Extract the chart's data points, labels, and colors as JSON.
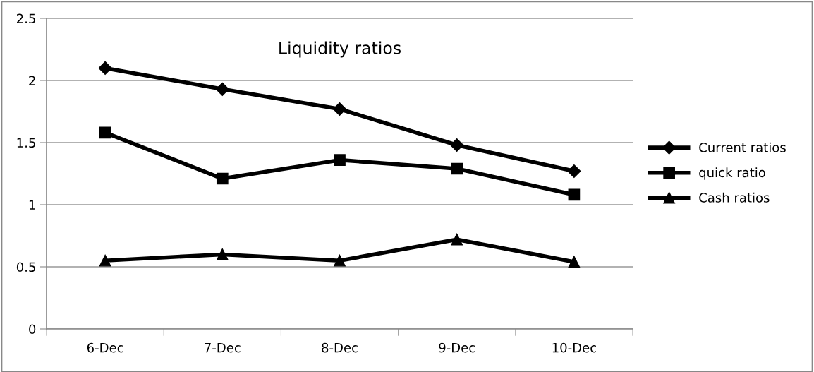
{
  "chart_data": {
    "type": "line",
    "title": "Liquidity ratios",
    "categories": [
      "6-Dec",
      "7-Dec",
      "8-Dec",
      "9-Dec",
      "10-Dec"
    ],
    "series": [
      {
        "name": "Current ratios",
        "color": "#000000",
        "marker": "diamond",
        "values": [
          2.1,
          1.93,
          1.77,
          1.48,
          1.27
        ]
      },
      {
        "name": "quick ratio",
        "color": "#000000",
        "marker": "square",
        "values": [
          1.58,
          1.21,
          1.36,
          1.29,
          1.08
        ]
      },
      {
        "name": "Cash ratios",
        "color": "#000000",
        "marker": "triangle",
        "values": [
          0.55,
          0.6,
          0.55,
          0.72,
          0.54
        ]
      }
    ],
    "ylim": [
      0,
      2.5
    ],
    "yticks": [
      0,
      0.5,
      1,
      1.5,
      2,
      2.5
    ],
    "grid": "y",
    "legend": "right",
    "line_style": "solid"
  }
}
